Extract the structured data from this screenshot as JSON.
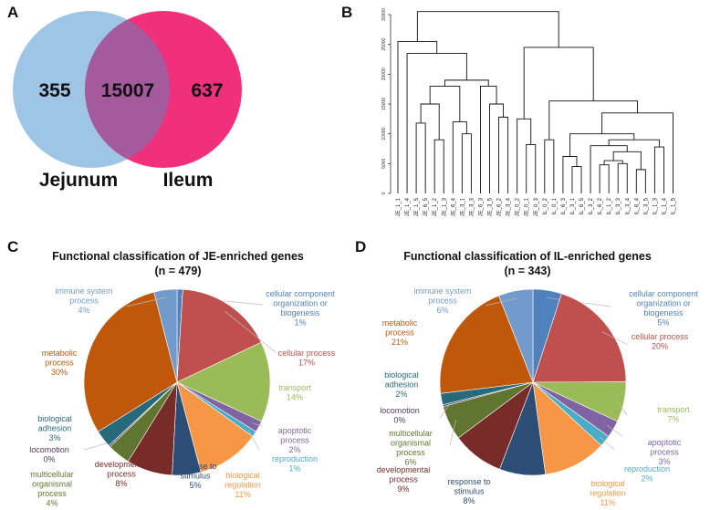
{
  "panels": {
    "a": "A",
    "b": "B",
    "c": "C",
    "d": "D"
  },
  "venn": {
    "left_count": "355",
    "overlap_count": "15007",
    "right_count": "637",
    "left_label": "Jejunum",
    "right_label": "Ileum",
    "left_color": "#9ec5e6",
    "right_color": "#f0307a",
    "overlap_color": "#a65a9e"
  },
  "chart_data": [
    {
      "type": "dendrogram",
      "panel": "B",
      "ylim": [
        0,
        30000
      ],
      "yticks": [
        "0",
        "5000",
        "10000",
        "15000",
        "20000",
        "25000",
        "30000"
      ],
      "leaves": [
        "JE_1_1",
        "JE_1_4",
        "JE_1_5",
        "JE_6_5",
        "JE_1_2",
        "JE_1_3",
        "JE_6_4",
        "JE_3_1",
        "JE_3_3",
        "JE_6_3",
        "JE_3_5",
        "JE_6_2",
        "JE_3_4",
        "JE_0_2",
        "JE_0_1",
        "JE_0_3",
        "IL_0_2",
        "IL_0_1",
        "IL_6_3",
        "IL_3_1",
        "IL_6_5",
        "IL_3_2",
        "IL_6_2",
        "IL_1_2",
        "IL_3_3",
        "IL_3_4",
        "IL_6_4",
        "IL_3_5",
        "IL_1_3",
        "IL_1_4",
        "IL_1_5"
      ]
    },
    {
      "type": "pie",
      "panel": "C",
      "title": "Functional classification of JE-enriched genes",
      "subtitle": "(n = 479)",
      "slices": [
        {
          "name": "cellular component organization or biogenesis",
          "lines": [
            "cellular component",
            "organization or",
            "biogenesis"
          ],
          "pct_label": "1%",
          "value": 1,
          "color": "#4f81bd",
          "text_color": "#4f81bd"
        },
        {
          "name": "cellular process",
          "lines": [
            "cellular process"
          ],
          "pct_label": "17%",
          "value": 17,
          "color": "#c0504d",
          "text_color": "#c0504d"
        },
        {
          "name": "transport",
          "lines": [
            "transport"
          ],
          "pct_label": "14%",
          "value": 14,
          "color": "#9bbb59",
          "text_color": "#9bbb59"
        },
        {
          "name": "apoptotic process",
          "lines": [
            "apoptotic",
            "process"
          ],
          "pct_label": "2%",
          "value": 2,
          "color": "#8064a2",
          "text_color": "#8064a2"
        },
        {
          "name": "reproduction",
          "lines": [
            "reproduction"
          ],
          "pct_label": "1%",
          "value": 1,
          "color": "#4bacc6",
          "text_color": "#4bacc6"
        },
        {
          "name": "biological regulation",
          "lines": [
            "biological",
            "regulation"
          ],
          "pct_label": "11%",
          "value": 11,
          "color": "#f79646",
          "text_color": "#f79646"
        },
        {
          "name": "response to stimulus",
          "lines": [
            "response to",
            "stimulus"
          ],
          "pct_label": "5%",
          "value": 5,
          "color": "#2c4d75",
          "text_color": "#2c4d75"
        },
        {
          "name": "developmental process",
          "lines": [
            "developmental",
            "process"
          ],
          "pct_label": "8%",
          "value": 8,
          "color": "#772c2a",
          "text_color": "#772c2a"
        },
        {
          "name": "multicellular organismal process",
          "lines": [
            "multicellular",
            "organismal",
            "process"
          ],
          "pct_label": "4%",
          "value": 4,
          "color": "#5f7530",
          "text_color": "#5f7530"
        },
        {
          "name": "locomotion",
          "lines": [
            "locomotion"
          ],
          "pct_label": "0%",
          "value": 0.3,
          "color": "#4d3b62",
          "text_color": "#4d3b62"
        },
        {
          "name": "biological adhesion",
          "lines": [
            "biological",
            "adhesion"
          ],
          "pct_label": "3%",
          "value": 3,
          "color": "#276a7c",
          "text_color": "#276a7c"
        },
        {
          "name": "metabolic process",
          "lines": [
            "metabolic",
            "process"
          ],
          "pct_label": "30%",
          "value": 30,
          "color": "#c0580b",
          "text_color": "#c0580b"
        },
        {
          "name": "immune system process",
          "lines": [
            "immune system",
            "process"
          ],
          "pct_label": "4%",
          "value": 4,
          "color": "#729aca",
          "text_color": "#729aca"
        }
      ]
    },
    {
      "type": "pie",
      "panel": "D",
      "title": "Functional classification of IL-enriched genes",
      "subtitle": "(n = 343)",
      "slices": [
        {
          "name": "cellular component organization or biogenesis",
          "lines": [
            "cellular component",
            "organization or",
            "biogenesis"
          ],
          "pct_label": "5%",
          "value": 5,
          "color": "#4f81bd",
          "text_color": "#4f81bd"
        },
        {
          "name": "cellular process",
          "lines": [
            "cellular process"
          ],
          "pct_label": "20%",
          "value": 20,
          "color": "#c0504d",
          "text_color": "#c0504d"
        },
        {
          "name": "transport",
          "lines": [
            "transport"
          ],
          "pct_label": "7%",
          "value": 7,
          "color": "#9bbb59",
          "text_color": "#9bbb59"
        },
        {
          "name": "apoptotic process",
          "lines": [
            "apoptotic",
            "process"
          ],
          "pct_label": "3%",
          "value": 3,
          "color": "#8064a2",
          "text_color": "#8064a2"
        },
        {
          "name": "reproduction",
          "lines": [
            "reproduction"
          ],
          "pct_label": "2%",
          "value": 2,
          "color": "#4bacc6",
          "text_color": "#4bacc6"
        },
        {
          "name": "biological regulation",
          "lines": [
            "biological",
            "regulation"
          ],
          "pct_label": "11%",
          "value": 11,
          "color": "#f79646",
          "text_color": "#f79646"
        },
        {
          "name": "response to stimulus",
          "lines": [
            "response to",
            "stimulus"
          ],
          "pct_label": "8%",
          "value": 8,
          "color": "#2c4d75",
          "text_color": "#2c4d75"
        },
        {
          "name": "developmental process",
          "lines": [
            "developmental",
            "process"
          ],
          "pct_label": "9%",
          "value": 9,
          "color": "#772c2a",
          "text_color": "#772c2a"
        },
        {
          "name": "multicellular organismal process",
          "lines": [
            "multicellular",
            "organismal",
            "process"
          ],
          "pct_label": "6%",
          "value": 6,
          "color": "#5f7530",
          "text_color": "#5f7530"
        },
        {
          "name": "locomotion",
          "lines": [
            "locomotion"
          ],
          "pct_label": "0%",
          "value": 0.3,
          "color": "#4d3b62",
          "text_color": "#4d3b62"
        },
        {
          "name": "biological adhesion",
          "lines": [
            "biological",
            "adhesion"
          ],
          "pct_label": "2%",
          "value": 2,
          "color": "#276a7c",
          "text_color": "#276a7c"
        },
        {
          "name": "metabolic process",
          "lines": [
            "metabolic",
            "process"
          ],
          "pct_label": "21%",
          "value": 21,
          "color": "#c0580b",
          "text_color": "#c0580b"
        },
        {
          "name": "immune system process",
          "lines": [
            "immune system",
            "process"
          ],
          "pct_label": "6%",
          "value": 6,
          "color": "#729aca",
          "text_color": "#729aca"
        }
      ]
    }
  ]
}
